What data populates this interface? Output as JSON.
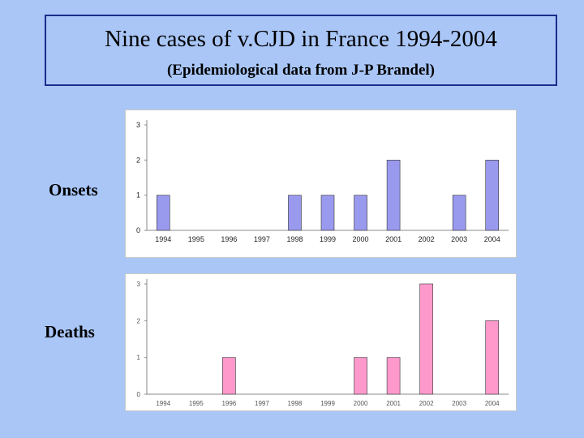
{
  "title": {
    "main": "Nine cases of v.CJD in France 1994-2004",
    "sub": "(Epidemiological data from J-P Brandel)"
  },
  "labels": {
    "onsets": "Onsets",
    "deaths": "Deaths"
  },
  "colors": {
    "background": "#a9c6f7",
    "onsets_bar": "#9999ee",
    "deaths_bar": "#ff99cc",
    "border": "#1a2c8c"
  },
  "chart_data": [
    {
      "type": "bar",
      "categories": [
        "1994",
        "1995",
        "1996",
        "1997",
        "1998",
        "1999",
        "2000",
        "2001",
        "2002",
        "2003",
        "2004"
      ],
      "values": [
        1,
        0,
        0,
        0,
        1,
        1,
        1,
        2,
        0,
        1,
        2
      ],
      "yticks": [
        "0",
        "1",
        "2",
        "3"
      ],
      "ylim": [
        0,
        3
      ],
      "grid": false,
      "title": "",
      "xlabel": "",
      "ylabel": ""
    },
    {
      "type": "bar",
      "categories": [
        "1994",
        "1995",
        "1996",
        "1997",
        "1998",
        "1999",
        "2000",
        "2001",
        "2002",
        "2003",
        "2004"
      ],
      "values": [
        0,
        0,
        1,
        0,
        0,
        0,
        1,
        1,
        3,
        0,
        2
      ],
      "yticks": [
        "0",
        "1",
        "2",
        "3"
      ],
      "ylim": [
        0,
        3
      ],
      "grid": false,
      "title": "",
      "xlabel": "",
      "ylabel": ""
    }
  ]
}
